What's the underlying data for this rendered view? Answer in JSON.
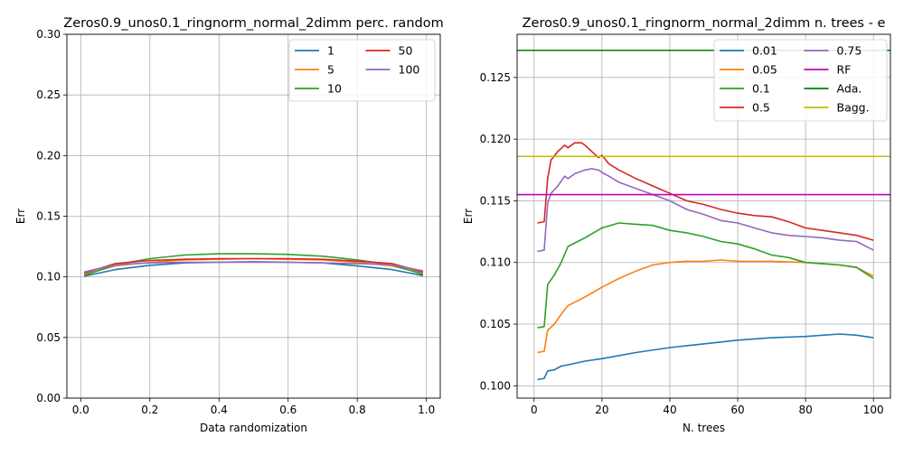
{
  "chart_data": [
    {
      "type": "line",
      "title": "Zeros0.9_unos0.1_ringnorm_normal_2dimm perc. random",
      "xlabel": "Data randomization",
      "ylabel": "Err",
      "xlim": [
        -0.04,
        1.04
      ],
      "ylim": [
        0.0,
        0.3
      ],
      "xticks": [
        0.0,
        0.2,
        0.4,
        0.6,
        0.8,
        1.0
      ],
      "xtick_labels": [
        "0.0",
        "0.2",
        "0.4",
        "0.6",
        "0.8",
        "1.0"
      ],
      "yticks": [
        0.0,
        0.05,
        0.1,
        0.15,
        0.2,
        0.25,
        0.3
      ],
      "ytick_labels": [
        "0.00",
        "0.05",
        "0.10",
        "0.15",
        "0.20",
        "0.25",
        "0.30"
      ],
      "grid": true,
      "legend": "top-right",
      "legend_columns": 2,
      "series": [
        {
          "name": "1",
          "color": "#1f77b4",
          "x": [
            0.01,
            0.1,
            0.2,
            0.3,
            0.4,
            0.5,
            0.6,
            0.7,
            0.8,
            0.9,
            0.99
          ],
          "values": [
            0.1005,
            0.106,
            0.1095,
            0.1115,
            0.112,
            0.1125,
            0.112,
            0.1115,
            0.109,
            0.106,
            0.101
          ]
        },
        {
          "name": "5",
          "color": "#ff7f0e",
          "x": [
            0.01,
            0.1,
            0.2,
            0.3,
            0.4,
            0.5,
            0.6,
            0.7,
            0.8,
            0.9,
            0.99
          ],
          "values": [
            0.102,
            0.109,
            0.112,
            0.114,
            0.1145,
            0.115,
            0.1145,
            0.114,
            0.112,
            0.109,
            0.103
          ]
        },
        {
          "name": "10",
          "color": "#2ca02c",
          "x": [
            0.01,
            0.1,
            0.2,
            0.3,
            0.4,
            0.5,
            0.6,
            0.7,
            0.8,
            0.9,
            0.99
          ],
          "values": [
            0.101,
            0.11,
            0.115,
            0.118,
            0.119,
            0.119,
            0.1185,
            0.117,
            0.114,
            0.11,
            0.102
          ]
        },
        {
          "name": "50",
          "color": "#d62728",
          "x": [
            0.01,
            0.1,
            0.2,
            0.3,
            0.4,
            0.5,
            0.6,
            0.7,
            0.8,
            0.9,
            0.99
          ],
          "values": [
            0.103,
            0.111,
            0.1135,
            0.1145,
            0.115,
            0.115,
            0.115,
            0.1145,
            0.113,
            0.111,
            0.104
          ]
        },
        {
          "name": "100",
          "color": "#9467bd",
          "x": [
            0.01,
            0.1,
            0.2,
            0.3,
            0.4,
            0.5,
            0.6,
            0.7,
            0.8,
            0.9,
            0.99
          ],
          "values": [
            0.104,
            0.11,
            0.1115,
            0.112,
            0.112,
            0.112,
            0.112,
            0.1115,
            0.111,
            0.11,
            0.105
          ]
        }
      ]
    },
    {
      "type": "line",
      "title": "Zeros0.9_unos0.1_ringnorm_normal_2dimm n. trees - e",
      "xlabel": "N. trees",
      "ylabel": "Err",
      "xlim": [
        -5,
        105
      ],
      "ylim": [
        0.099,
        0.1285
      ],
      "xticks": [
        0,
        20,
        40,
        60,
        80,
        100
      ],
      "xtick_labels": [
        "0",
        "20",
        "40",
        "60",
        "80",
        "100"
      ],
      "yticks": [
        0.1,
        0.105,
        0.11,
        0.115,
        0.12,
        0.125
      ],
      "ytick_labels": [
        "0.100",
        "0.105",
        "0.110",
        "0.115",
        "0.120",
        "0.125"
      ],
      "grid": true,
      "legend": "top-right",
      "legend_columns": 2,
      "series": [
        {
          "name": "0.01",
          "color": "#1f77b4",
          "x": [
            1,
            3,
            4,
            6,
            8,
            10,
            15,
            20,
            30,
            40,
            50,
            60,
            70,
            80,
            90,
            95,
            100
          ],
          "values": [
            0.1005,
            0.1006,
            0.1012,
            0.1013,
            0.1016,
            0.1017,
            0.102,
            0.1022,
            0.1027,
            0.1031,
            0.1034,
            0.1037,
            0.1039,
            0.104,
            0.1042,
            0.1041,
            0.1039
          ]
        },
        {
          "name": "0.05",
          "color": "#ff7f0e",
          "x": [
            1,
            3,
            4,
            6,
            8,
            10,
            15,
            20,
            25,
            30,
            35,
            40,
            45,
            50,
            55,
            60,
            70,
            80,
            90,
            95,
            100
          ],
          "values": [
            0.1027,
            0.1028,
            0.1045,
            0.105,
            0.1058,
            0.1065,
            0.1072,
            0.108,
            0.1087,
            0.1093,
            0.1098,
            0.11,
            0.1101,
            0.1101,
            0.1102,
            0.1101,
            0.1101,
            0.11,
            0.1098,
            0.1096,
            0.1089
          ]
        },
        {
          "name": "0.1",
          "color": "#2ca02c",
          "x": [
            1,
            3,
            4,
            6,
            8,
            10,
            15,
            20,
            25,
            30,
            35,
            40,
            45,
            50,
            55,
            60,
            65,
            70,
            75,
            80,
            85,
            90,
            95,
            100
          ],
          "values": [
            0.1047,
            0.1048,
            0.1082,
            0.109,
            0.11,
            0.1113,
            0.112,
            0.1128,
            0.1132,
            0.1131,
            0.113,
            0.1126,
            0.1124,
            0.1121,
            0.1117,
            0.1115,
            0.1111,
            0.1106,
            0.1104,
            0.11,
            0.1099,
            0.1098,
            0.1096,
            0.1087
          ]
        },
        {
          "name": "0.5",
          "color": "#d62728",
          "x": [
            1,
            3,
            4,
            5,
            7,
            9,
            10,
            12,
            14,
            15,
            17,
            19,
            20,
            22,
            25,
            30,
            35,
            40,
            45,
            50,
            55,
            60,
            65,
            70,
            75,
            80,
            85,
            90,
            95,
            100
          ],
          "values": [
            0.1132,
            0.1133,
            0.1168,
            0.1183,
            0.119,
            0.1195,
            0.1193,
            0.1197,
            0.1197,
            0.1195,
            0.119,
            0.1185,
            0.1187,
            0.118,
            0.1175,
            0.1168,
            0.1162,
            0.1156,
            0.115,
            0.1147,
            0.1143,
            0.114,
            0.1138,
            0.1137,
            0.1133,
            0.1128,
            0.1126,
            0.1124,
            0.1122,
            0.1118
          ]
        },
        {
          "name": "0.75",
          "color": "#9467bd",
          "x": [
            1,
            3,
            4,
            5,
            7,
            9,
            10,
            12,
            14,
            15,
            17,
            19,
            20,
            22,
            25,
            30,
            35,
            40,
            45,
            50,
            55,
            60,
            65,
            70,
            75,
            80,
            85,
            90,
            95,
            100
          ],
          "values": [
            0.1109,
            0.111,
            0.1148,
            0.1156,
            0.1162,
            0.117,
            0.1168,
            0.1172,
            0.1174,
            0.1175,
            0.1176,
            0.1175,
            0.1173,
            0.117,
            0.1165,
            0.116,
            0.1155,
            0.115,
            0.1143,
            0.1139,
            0.1134,
            0.1132,
            0.1128,
            0.1124,
            0.1122,
            0.1121,
            0.112,
            0.1118,
            0.1117,
            0.111
          ]
        },
        {
          "name": "RF",
          "color": "#c000c0",
          "constant": 0.1155
        },
        {
          "name": "Ada.",
          "color": "#008000",
          "constant": 0.1272
        },
        {
          "name": "Bagg.",
          "color": "#bfbf00",
          "constant": 0.1186
        }
      ]
    }
  ]
}
